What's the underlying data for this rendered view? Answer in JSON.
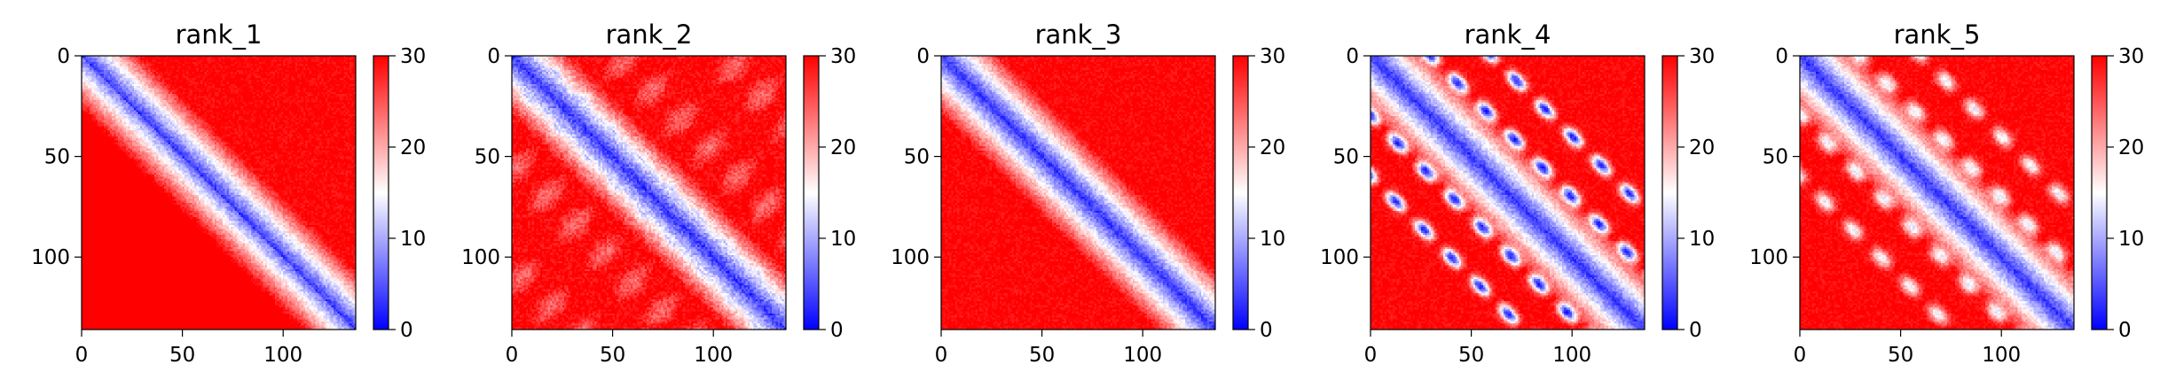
{
  "chart_data": [
    {
      "type": "heatmap",
      "title": "rank_1",
      "variant": 1,
      "matrix_size": 136,
      "xticks": [
        0,
        50,
        100
      ],
      "yticks": [
        0,
        50,
        100
      ],
      "xlim": [
        0,
        136
      ],
      "ylim": [
        136,
        0
      ],
      "colorbar": {
        "ticks": [
          0,
          10,
          20,
          30
        ],
        "vmin": 0,
        "vmax": 30,
        "colormap": "bwr"
      }
    },
    {
      "type": "heatmap",
      "title": "rank_2",
      "variant": 2,
      "matrix_size": 136,
      "xticks": [
        0,
        50,
        100
      ],
      "yticks": [
        0,
        50,
        100
      ],
      "xlim": [
        0,
        136
      ],
      "ylim": [
        136,
        0
      ],
      "colorbar": {
        "ticks": [
          0,
          10,
          20,
          30
        ],
        "vmin": 0,
        "vmax": 30,
        "colormap": "bwr"
      }
    },
    {
      "type": "heatmap",
      "title": "rank_3",
      "variant": 3,
      "matrix_size": 136,
      "xticks": [
        0,
        50,
        100
      ],
      "yticks": [
        0,
        50,
        100
      ],
      "xlim": [
        0,
        136
      ],
      "ylim": [
        136,
        0
      ],
      "colorbar": {
        "ticks": [
          0,
          10,
          20,
          30
        ],
        "vmin": 0,
        "vmax": 30,
        "colormap": "bwr"
      }
    },
    {
      "type": "heatmap",
      "title": "rank_4",
      "variant": 4,
      "matrix_size": 136,
      "xticks": [
        0,
        50,
        100
      ],
      "yticks": [
        0,
        50,
        100
      ],
      "xlim": [
        0,
        136
      ],
      "ylim": [
        136,
        0
      ],
      "colorbar": {
        "ticks": [
          0,
          10,
          20,
          30
        ],
        "vmin": 0,
        "vmax": 30,
        "colormap": "bwr"
      }
    },
    {
      "type": "heatmap",
      "title": "rank_5",
      "variant": 5,
      "matrix_size": 136,
      "xticks": [
        0,
        50,
        100
      ],
      "yticks": [
        0,
        50,
        100
      ],
      "xlim": [
        0,
        136
      ],
      "ylim": [
        136,
        0
      ],
      "colorbar": {
        "ticks": [
          0,
          10,
          20,
          30
        ],
        "vmin": 0,
        "vmax": 30,
        "colormap": "bwr"
      }
    }
  ]
}
